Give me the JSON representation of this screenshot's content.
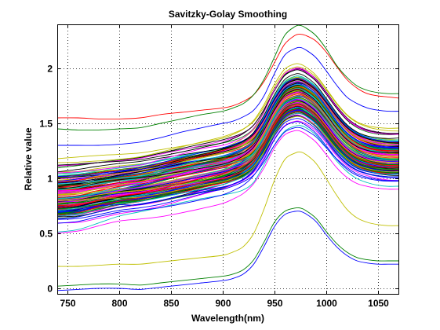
{
  "chart_data": {
    "type": "line",
    "title": "Savitzky-Golay Smoothing",
    "xlabel": "Wavelength(nm)",
    "ylabel": "Relative value",
    "xlim": [
      740,
      1070
    ],
    "ylim": [
      -0.05,
      2.4
    ],
    "x_ticks": [
      750,
      800,
      850,
      900,
      950,
      1000,
      1050
    ],
    "y_ticks": [
      0,
      0.5,
      1,
      1.5,
      2
    ],
    "y_tick_labels": [
      "0",
      "0.5",
      "1",
      "1.5",
      "2"
    ],
    "grid": true,
    "series_count_note": "",
    "spectra_model": {
      "x": [
        740,
        760,
        780,
        800,
        820,
        840,
        860,
        880,
        900,
        910,
        920,
        930,
        940,
        950,
        960,
        970,
        975,
        980,
        990,
        1000,
        1010,
        1020,
        1030,
        1040,
        1050,
        1060,
        1070
      ],
      "representative_series": [
        {
          "color": "#ff0000",
          "values": [
            1.55,
            1.55,
            1.54,
            1.54,
            1.55,
            1.58,
            1.6,
            1.62,
            1.64,
            1.66,
            1.7,
            1.76,
            1.88,
            2.05,
            2.22,
            2.3,
            2.31,
            2.3,
            2.25,
            2.15,
            2.02,
            1.9,
            1.82,
            1.77,
            1.75,
            1.74,
            1.73
          ]
        },
        {
          "color": "#008000",
          "values": [
            1.45,
            1.44,
            1.44,
            1.45,
            1.46,
            1.5,
            1.54,
            1.58,
            1.61,
            1.64,
            1.68,
            1.76,
            1.9,
            2.1,
            2.3,
            2.38,
            2.39,
            2.37,
            2.3,
            2.18,
            2.03,
            1.92,
            1.84,
            1.8,
            1.78,
            1.77,
            1.77
          ]
        },
        {
          "color": "#0000ff",
          "values": [
            1.3,
            1.3,
            1.3,
            1.31,
            1.33,
            1.37,
            1.42,
            1.46,
            1.5,
            1.52,
            1.56,
            1.62,
            1.75,
            1.95,
            2.12,
            2.18,
            2.19,
            2.17,
            2.1,
            1.98,
            1.85,
            1.74,
            1.68,
            1.64,
            1.62,
            1.61,
            1.61
          ]
        },
        {
          "color": "#ff00ff",
          "values": [
            1.05,
            1.06,
            1.08,
            1.1,
            1.12,
            1.17,
            1.22,
            1.27,
            1.3,
            1.33,
            1.37,
            1.45,
            1.6,
            1.8,
            1.95,
            2.0,
            2.0,
            1.98,
            1.9,
            1.78,
            1.65,
            1.54,
            1.47,
            1.43,
            1.41,
            1.4,
            1.4
          ]
        },
        {
          "color": "#00bfbf",
          "values": [
            0.95,
            0.96,
            0.98,
            1.0,
            1.02,
            1.07,
            1.12,
            1.17,
            1.2,
            1.23,
            1.27,
            1.34,
            1.48,
            1.66,
            1.8,
            1.85,
            1.85,
            1.83,
            1.76,
            1.64,
            1.51,
            1.4,
            1.33,
            1.29,
            1.27,
            1.26,
            1.26
          ]
        },
        {
          "color": "#bfbf00",
          "values": [
            0.8,
            0.8,
            0.82,
            0.82,
            0.83,
            0.86,
            0.9,
            0.94,
            0.97,
            1.0,
            1.04,
            1.11,
            1.24,
            1.4,
            1.52,
            1.56,
            1.56,
            1.54,
            1.48,
            1.38,
            1.27,
            1.18,
            1.12,
            1.09,
            1.07,
            1.06,
            1.06
          ]
        },
        {
          "color": "#0000ff",
          "values": [
            0.7,
            0.72,
            0.75,
            0.76,
            0.76,
            0.8,
            0.84,
            0.87,
            0.9,
            0.93,
            0.97,
            1.03,
            1.15,
            1.3,
            1.42,
            1.46,
            1.46,
            1.44,
            1.38,
            1.28,
            1.18,
            1.1,
            1.04,
            1.01,
            0.99,
            0.98,
            0.98
          ]
        },
        {
          "color": "#bfbf00",
          "values": [
            0.2,
            0.2,
            0.21,
            0.22,
            0.22,
            0.24,
            0.26,
            0.28,
            0.3,
            0.33,
            0.38,
            0.5,
            0.72,
            0.98,
            1.17,
            1.23,
            1.24,
            1.22,
            1.14,
            1.0,
            0.85,
            0.72,
            0.64,
            0.6,
            0.58,
            0.57,
            0.57
          ]
        },
        {
          "color": "#008000",
          "values": [
            0.02,
            0.03,
            0.04,
            0.04,
            0.03,
            0.05,
            0.07,
            0.09,
            0.11,
            0.13,
            0.17,
            0.26,
            0.42,
            0.6,
            0.7,
            0.73,
            0.73,
            0.71,
            0.64,
            0.52,
            0.41,
            0.33,
            0.28,
            0.26,
            0.25,
            0.25,
            0.25
          ]
        },
        {
          "color": "#0000ff",
          "values": [
            -0.02,
            -0.01,
            0.0,
            0.0,
            -0.01,
            0.01,
            0.03,
            0.05,
            0.07,
            0.09,
            0.13,
            0.22,
            0.38,
            0.56,
            0.67,
            0.7,
            0.7,
            0.68,
            0.61,
            0.49,
            0.38,
            0.3,
            0.25,
            0.23,
            0.22,
            0.22,
            0.22
          ]
        }
      ],
      "dense_band": {
        "low_values": [
          0.38,
          0.4,
          0.46,
          0.52,
          0.55,
          0.58,
          0.62,
          0.66,
          0.7,
          0.73,
          0.77,
          0.85,
          1.0,
          1.18,
          1.3,
          1.34,
          1.34,
          1.32,
          1.25,
          1.14,
          1.02,
          0.93,
          0.87,
          0.84,
          0.82,
          0.81,
          0.81
        ],
        "high_values": [
          1.25,
          1.26,
          1.27,
          1.28,
          1.3,
          1.34,
          1.38,
          1.42,
          1.46,
          1.49,
          1.53,
          1.6,
          1.74,
          1.92,
          2.06,
          2.11,
          2.11,
          2.09,
          2.02,
          1.9,
          1.77,
          1.66,
          1.59,
          1.55,
          1.53,
          1.52,
          1.52
        ],
        "count": 150,
        "palette": [
          "#0000ff",
          "#008000",
          "#ff0000",
          "#00bfbf",
          "#ff00ff",
          "#bfbf00",
          "#000000"
        ]
      }
    }
  }
}
